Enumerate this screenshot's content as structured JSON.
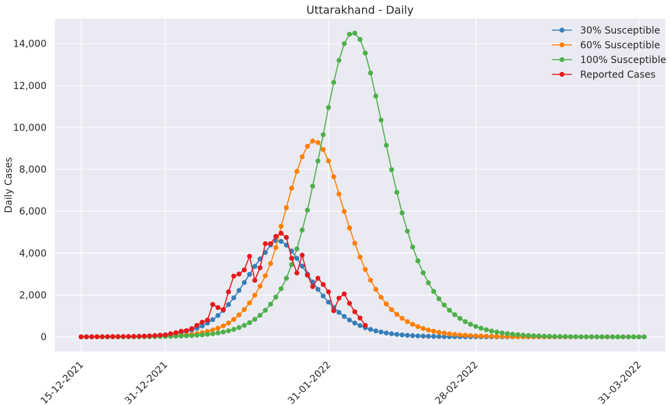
{
  "chart_data": {
    "type": "line",
    "title": "Uttarakhand - Daily",
    "xlabel": "",
    "ylabel": "Daily Cases",
    "x_start": "15-12-2021",
    "x_end": "31-03-2022",
    "xlim": [
      "10-12-2021",
      "05-04-2022"
    ],
    "ylim": [
      -700,
      15200
    ],
    "y_ticks": [
      0,
      2000,
      4000,
      6000,
      8000,
      10000,
      12000,
      14000
    ],
    "y_tick_labels": [
      "0",
      "2,000",
      "4,000",
      "6,000",
      "8,000",
      "10,000",
      "12,000",
      "14,000"
    ],
    "x_ticks": [
      "15-12-2021",
      "31-12-2021",
      "31-01-2022",
      "28-02-2022",
      "31-03-2022"
    ],
    "x_tick_labels": [
      "15-12-2021",
      "31-12-2021",
      "31-01-2022",
      "28-02-2022",
      "31-03-2022"
    ],
    "grid": true,
    "legend_position": "top-right",
    "series": [
      {
        "name": "30% Susceptible",
        "color": "#377eb8",
        "values": [
          2,
          3,
          4,
          5,
          6,
          7,
          9,
          11,
          14,
          18,
          23,
          29,
          37,
          47,
          60,
          77,
          98,
          125,
          159,
          202,
          257,
          326,
          413,
          522,
          657,
          823,
          1024,
          1264,
          1544,
          1864,
          2218,
          2596,
          2985,
          3367,
          3721,
          4031,
          4389,
          4600,
          4560,
          4380,
          4100,
          3750,
          3380,
          3000,
          2620,
          2270,
          1950,
          1660,
          1400,
          1170,
          975,
          805,
          660,
          540,
          440,
          357,
          288,
          232,
          186,
          149,
          119,
          95,
          75,
          60,
          47,
          37,
          29,
          23,
          18,
          14,
          11,
          9,
          7,
          5,
          4,
          3,
          2,
          2,
          1,
          1,
          1,
          1,
          1,
          1,
          1,
          1,
          1,
          1,
          1,
          1,
          1,
          1,
          1,
          1,
          1,
          1,
          1,
          1,
          1,
          1,
          1,
          1,
          1,
          1,
          1,
          1,
          1,
          1
        ]
      },
      {
        "name": "60% Susceptible",
        "color": "#ff7f00",
        "values": [
          1,
          1,
          1,
          2,
          2,
          3,
          3,
          4,
          5,
          7,
          9,
          11,
          14,
          18,
          23,
          29,
          37,
          47,
          60,
          77,
          98,
          125,
          159,
          202,
          257,
          326,
          413,
          523,
          661,
          833,
          1046,
          1306,
          1620,
          1990,
          2420,
          2920,
          3500,
          4260,
          5280,
          6170,
          7100,
          7900,
          8600,
          9100,
          9350,
          9280,
          8950,
          8400,
          7650,
          6820,
          5990,
          5200,
          4470,
          3810,
          3220,
          2710,
          2270,
          1890,
          1570,
          1300,
          1075,
          885,
          728,
          598,
          490,
          401,
          328,
          268,
          219,
          178,
          145,
          118,
          96,
          78,
          63,
          51,
          41,
          33,
          27,
          22,
          18,
          14,
          11,
          9,
          7,
          6,
          5,
          4,
          3,
          2,
          2,
          2,
          1,
          1,
          1,
          1,
          1,
          1,
          1,
          1,
          1,
          1,
          1,
          1,
          1,
          1,
          1
        ]
      },
      {
        "name": "100% Susceptible",
        "color": "#4daf4a",
        "values": [
          1,
          1,
          1,
          1,
          2,
          2,
          2,
          3,
          4,
          5,
          6,
          7,
          9,
          11,
          14,
          17,
          21,
          26,
          32,
          40,
          50,
          62,
          77,
          96,
          120,
          150,
          187,
          233,
          290,
          360,
          446,
          551,
          680,
          838,
          1030,
          1270,
          1560,
          1900,
          2300,
          2800,
          3450,
          4200,
          5100,
          6050,
          7200,
          8400,
          9650,
          10950,
          12150,
          13200,
          14000,
          14450,
          14500,
          14200,
          13550,
          12600,
          11500,
          10350,
          9150,
          7980,
          6900,
          5920,
          5050,
          4290,
          3630,
          3060,
          2580,
          2170,
          1820,
          1520,
          1270,
          1060,
          880,
          730,
          605,
          500,
          413,
          340,
          280,
          230,
          188,
          154,
          126,
          103,
          84,
          68,
          55,
          45,
          36,
          29,
          23,
          19,
          15,
          12,
          10,
          8,
          6,
          5,
          4,
          3,
          3,
          2,
          2,
          2,
          1,
          1,
          1,
          1
        ]
      },
      {
        "name": "Reported Cases",
        "color": "#e41a1c",
        "values": [
          5,
          6,
          8,
          7,
          9,
          12,
          15,
          14,
          18,
          22,
          20,
          28,
          35,
          45,
          60,
          80,
          100,
          150,
          200,
          270,
          300,
          390,
          550,
          700,
          800,
          1550,
          1400,
          1300,
          2150,
          2900,
          3000,
          3200,
          3850,
          2700,
          3300,
          4450,
          4450,
          4800,
          4950,
          4750,
          3750,
          3050,
          3900,
          2950,
          2400,
          2800,
          2500,
          2150,
          1250,
          1850,
          2050,
          1600,
          1200,
          900,
          550
        ]
      }
    ]
  }
}
